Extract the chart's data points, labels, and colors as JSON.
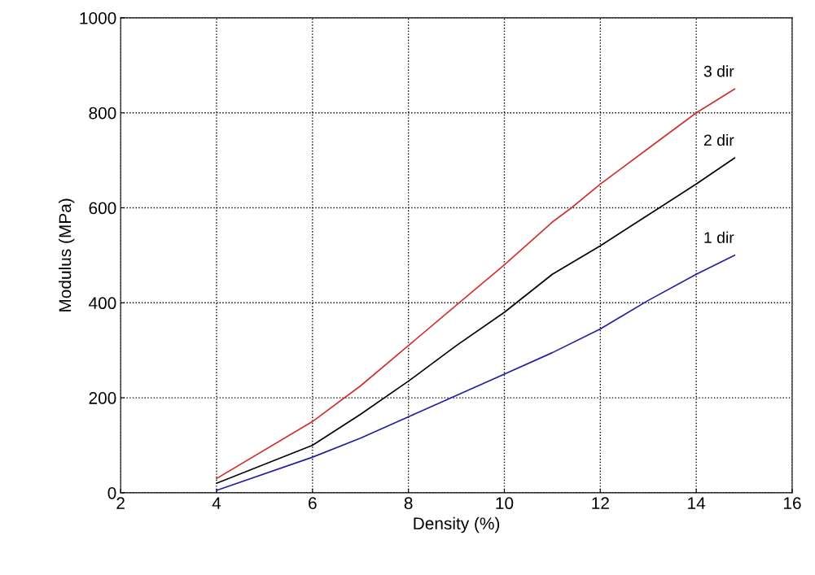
{
  "chart_data": {
    "type": "line",
    "xlabel": "Density (%)",
    "ylabel": "Modulus (MPa)",
    "xlim": [
      2,
      16
    ],
    "xticks": [
      2,
      4,
      6,
      8,
      10,
      12,
      14,
      16
    ],
    "ylim": [
      0,
      1000
    ],
    "yticks": [
      0,
      200,
      400,
      600,
      800,
      1000
    ],
    "grid": true,
    "legend": false,
    "marker": "none",
    "line_style": "solid",
    "series": [
      {
        "name": "3 dir",
        "color": "#d03030",
        "x": [
          4,
          6,
          7,
          8,
          9,
          10,
          11,
          11.4,
          12,
          13,
          14,
          14.8
        ],
        "values": [
          30,
          150,
          225,
          310,
          395,
          480,
          570,
          600,
          650,
          725,
          800,
          850
        ]
      },
      {
        "name": "2 dir",
        "color": "#000000",
        "x": [
          4,
          6,
          7,
          8,
          9,
          10,
          11,
          12,
          13,
          14,
          14.8
        ],
        "values": [
          20,
          100,
          165,
          235,
          310,
          380,
          460,
          520,
          585,
          650,
          705
        ]
      },
      {
        "name": "1 dir",
        "color": "#2020a0",
        "x": [
          4,
          6,
          7,
          8,
          9,
          10,
          11,
          12,
          13,
          14,
          14.8
        ],
        "values": [
          5,
          75,
          115,
          160,
          205,
          250,
          295,
          345,
          405,
          460,
          500
        ]
      }
    ]
  }
}
